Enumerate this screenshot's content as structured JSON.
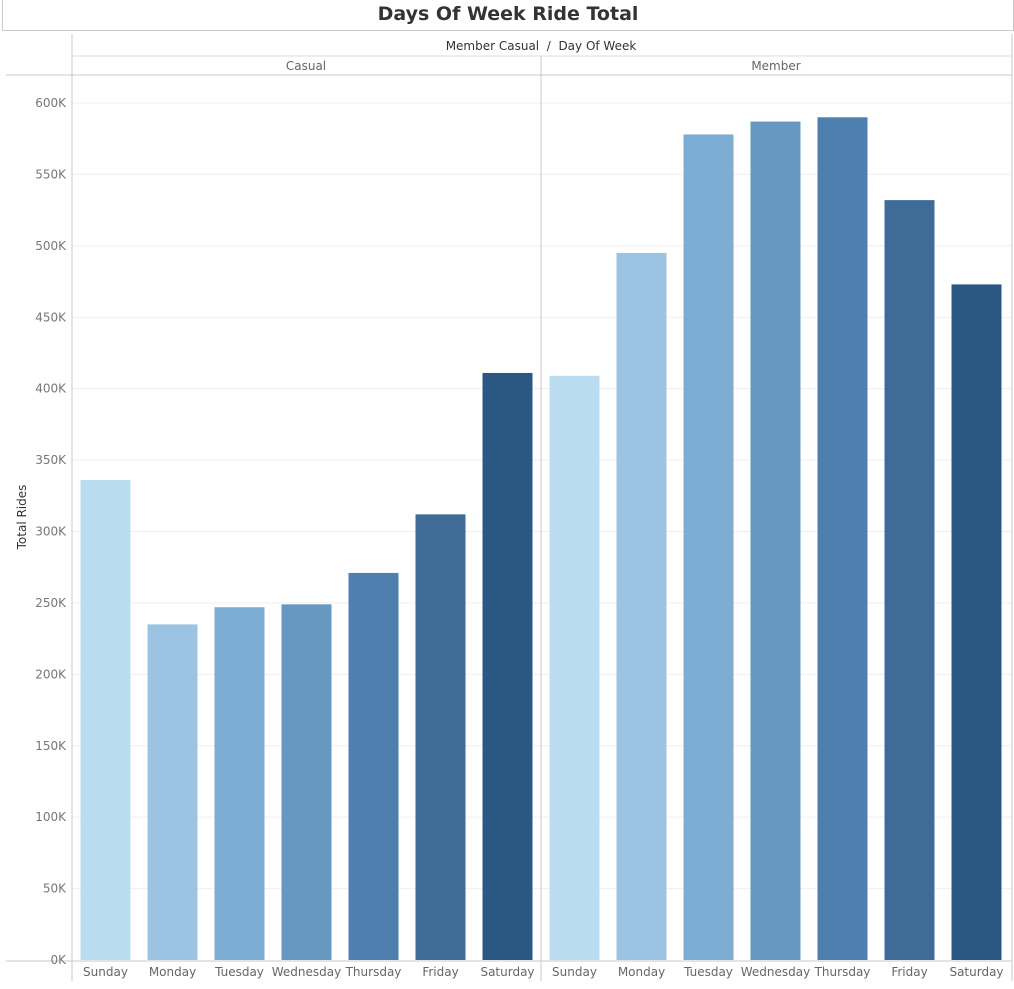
{
  "title": "Days Of Week Ride Total",
  "chart_data": {
    "type": "bar",
    "header": "Member Casual  /  Day Of Week",
    "ylabel": "Total Rides",
    "ylim": [
      0,
      600000
    ],
    "yticks": [
      0,
      50000,
      100000,
      150000,
      200000,
      250000,
      300000,
      350000,
      400000,
      450000,
      500000,
      550000,
      600000
    ],
    "ytick_labels": [
      "0K",
      "50K",
      "100K",
      "150K",
      "200K",
      "250K",
      "300K",
      "350K",
      "400K",
      "450K",
      "500K",
      "550K",
      "600K"
    ],
    "grid": true,
    "categories": [
      "Sunday",
      "Monday",
      "Tuesday",
      "Wednesday",
      "Thursday",
      "Friday",
      "Saturday"
    ],
    "colors": [
      "#b9dcef",
      "#9cc4e2",
      "#7eadd3",
      "#6698c2",
      "#4f7faf",
      "#3e6b98",
      "#2b5883"
    ],
    "panels": [
      {
        "name": "Casual",
        "values": [
          336000,
          235000,
          247000,
          249000,
          271000,
          312000,
          411000
        ]
      },
      {
        "name": "Member",
        "values": [
          409000,
          495000,
          578000,
          587000,
          590000,
          532000,
          473000
        ]
      }
    ]
  }
}
